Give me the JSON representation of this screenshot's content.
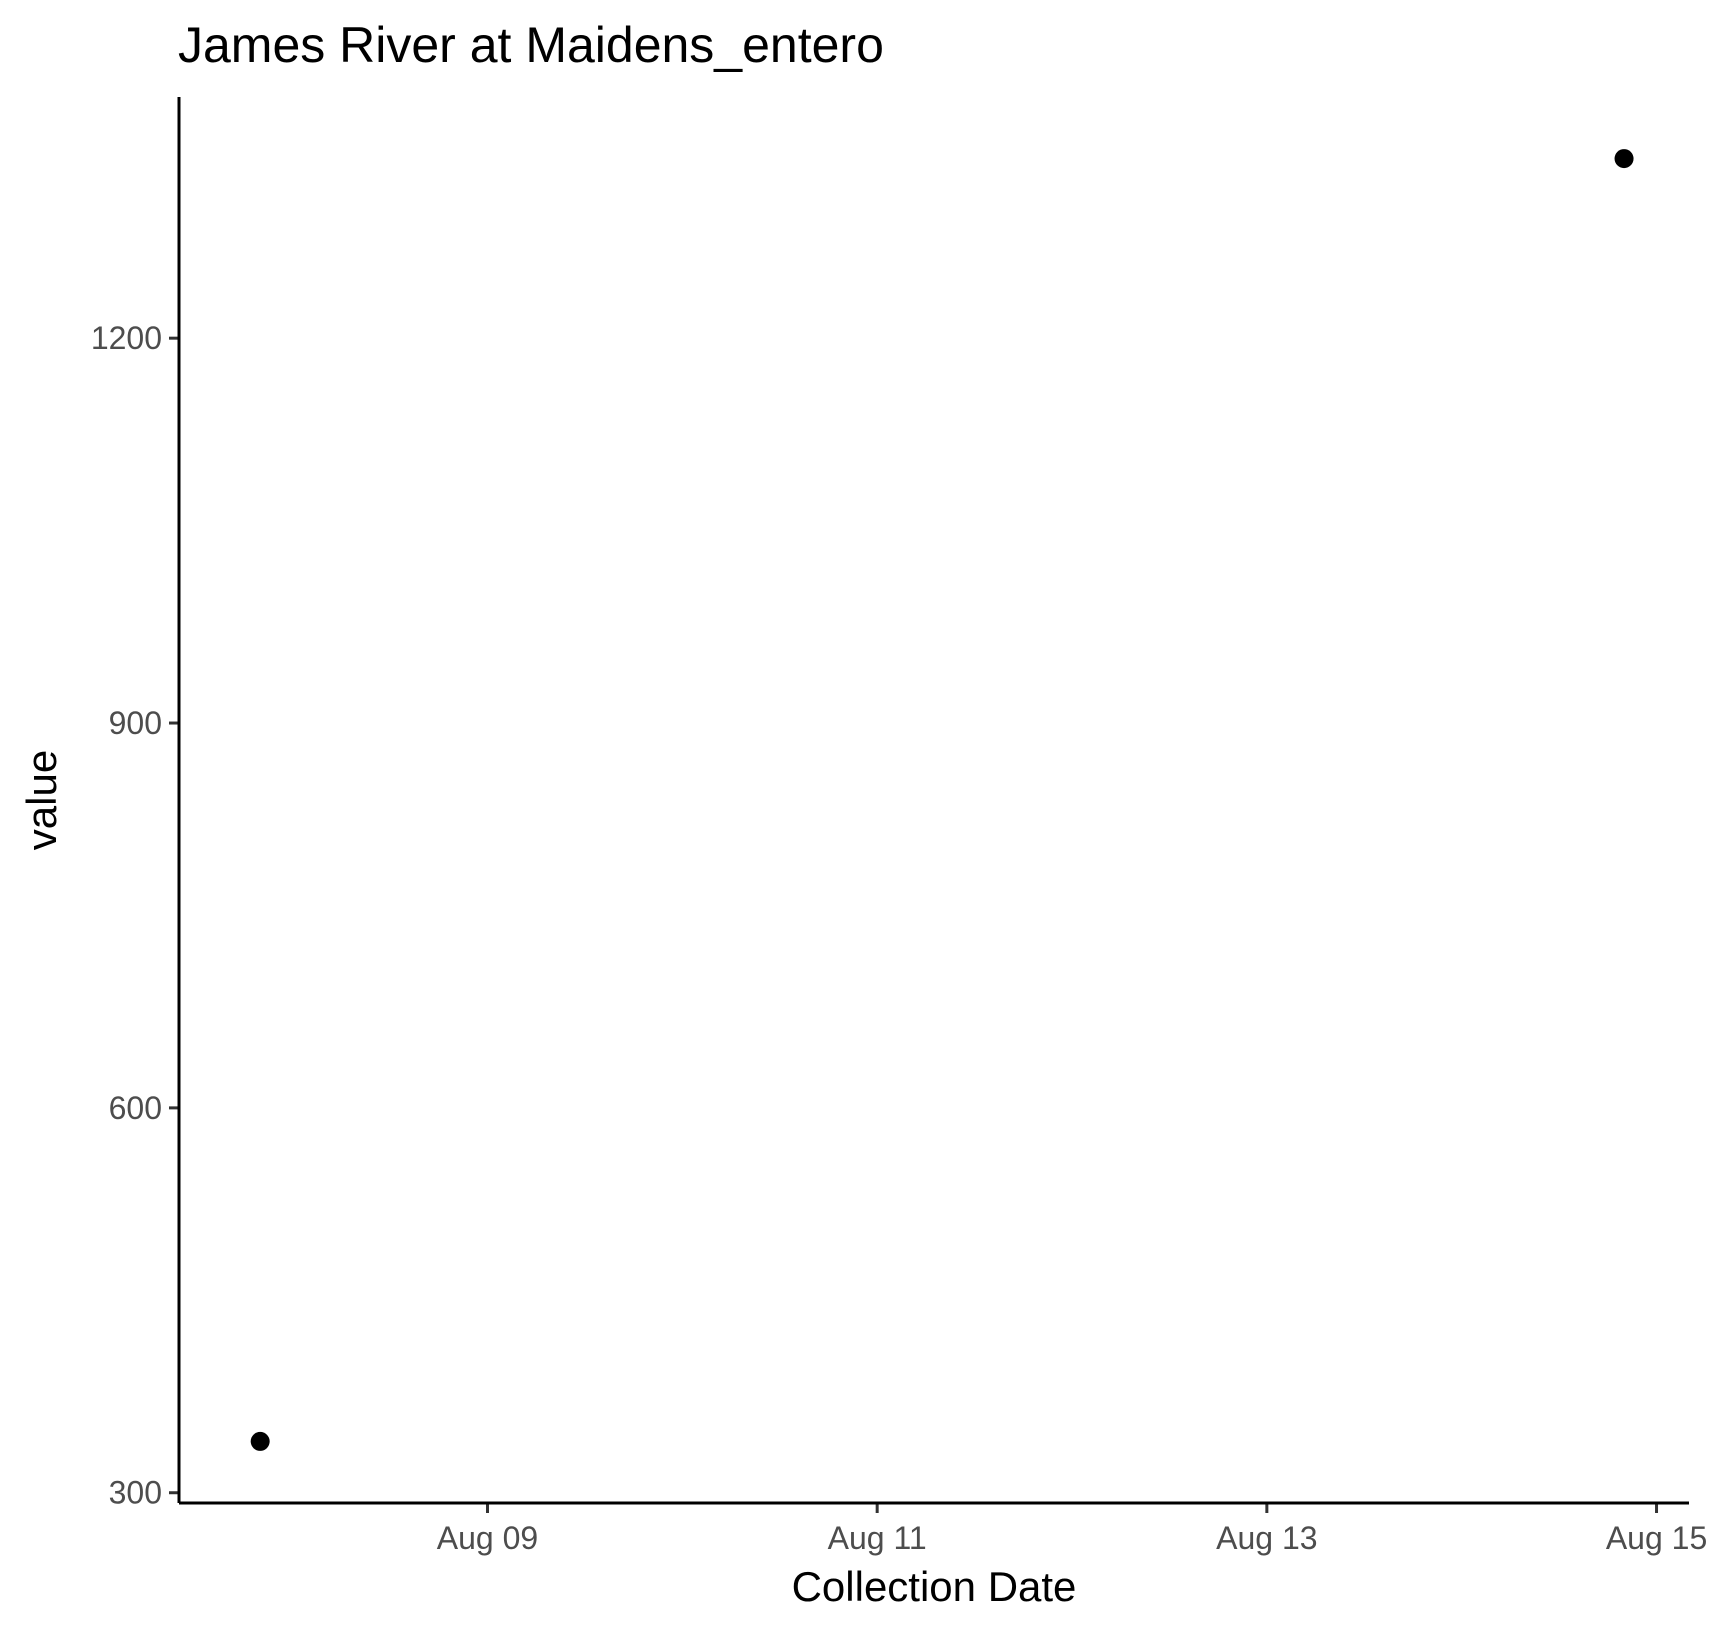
{
  "chart_data": {
    "type": "scatter",
    "title": "James River at Maidens_entero",
    "xlabel": "Collection Date",
    "ylabel": "value",
    "x_type": "date",
    "x_ticks": [
      {
        "date": "2024-08-09",
        "label": "Aug 09"
      },
      {
        "date": "2024-08-11",
        "label": "Aug 11"
      },
      {
        "date": "2024-08-13",
        "label": "Aug 13"
      },
      {
        "date": "2024-08-15",
        "label": "Aug 15"
      }
    ],
    "y_ticks": [
      {
        "value": 300,
        "label": "300"
      },
      {
        "value": 600,
        "label": "600"
      },
      {
        "value": 900,
        "label": "900"
      },
      {
        "value": 1200,
        "label": "1200"
      }
    ],
    "xlim": [
      "2024-08-07T10:00",
      "2024-08-15T04:00"
    ],
    "ylim": [
      292,
      1388
    ],
    "grid": false,
    "legend": "none",
    "point_color": "#000000",
    "series": [
      {
        "x": [
          "2024-08-07T20:00",
          "2024-08-14T20:00"
        ],
        "y": [
          340,
          1340
        ]
      }
    ]
  }
}
